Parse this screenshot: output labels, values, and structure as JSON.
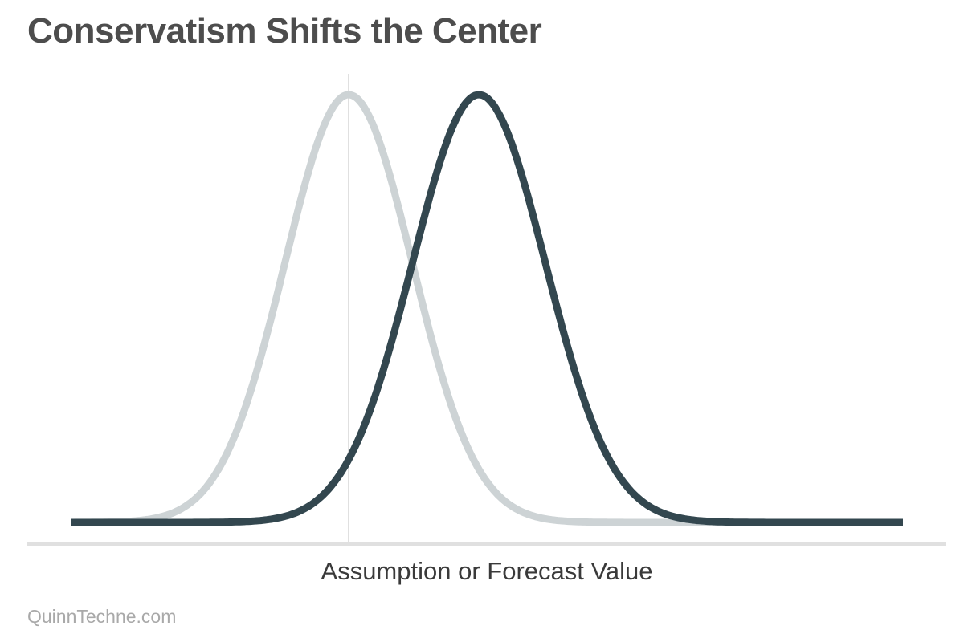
{
  "title": "Conservatism Shifts the Center",
  "source": "QuinnTechne.com",
  "colors": {
    "baseline_curve": "#cdd3d5",
    "shifted_curve": "#33474f",
    "center_line": "#cccccc",
    "axis": "#e0e0e0",
    "title": "#4d4d4d"
  },
  "chart_data": {
    "type": "line",
    "title": "Conservatism Shifts the Center",
    "xlabel": "Assumption or Forecast Value",
    "ylabel": "",
    "xlim": [
      -5.0,
      10.0
    ],
    "ylim": [
      0,
      1.0
    ],
    "x_ticks": [],
    "y_ticks": [],
    "grid": false,
    "legend": "none",
    "center_marker_x": 0,
    "series": [
      {
        "color": "#cdd3d5",
        "distribution": "normal",
        "mean": 0,
        "sd": 1.15,
        "peak": 1.0
      },
      {
        "color": "#33474f",
        "distribution": "normal",
        "mean": 2.35,
        "sd": 1.2,
        "peak": 1.0
      }
    ]
  }
}
